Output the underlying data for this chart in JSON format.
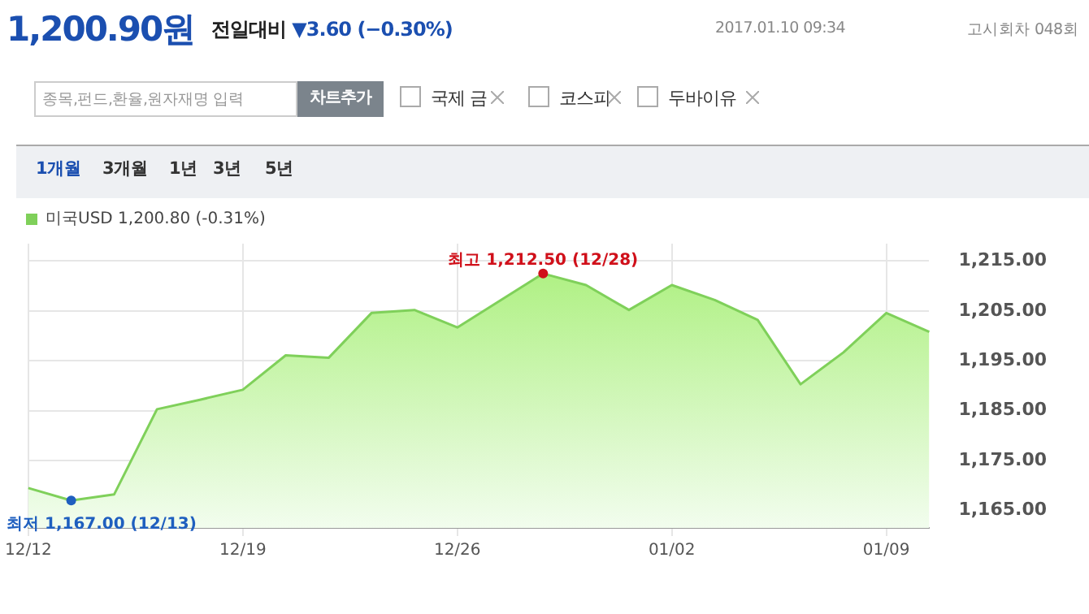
{
  "chart_data": {
    "type": "area",
    "title": "1,200.90원",
    "subtitle": "전일대비 ▼3.60 (−0.30%)",
    "categories": [
      "12/12",
      null,
      null,
      null,
      null,
      "12/19",
      null,
      null,
      null,
      null,
      "12/26",
      null,
      null,
      null,
      null,
      "01/02",
      null,
      null,
      null,
      null,
      "01/09",
      null
    ],
    "series": [
      {
        "name": "미국USD 1,200.80 (-0.31%)",
        "color": "#7fd05a",
        "values": [
          1169.5,
          1167.0,
          1168.2,
          1185.3,
          1187.2,
          1189.2,
          1196.1,
          1195.6,
          1204.6,
          1205.2,
          1201.7,
          1207.1,
          1212.5,
          1210.2,
          1205.2,
          1210.2,
          1207.2,
          1203.2,
          1190.3,
          1196.7,
          1204.6,
          1200.8
        ]
      }
    ],
    "ylim": [
      1161.5,
      1218.5
    ],
    "yticks": [
      {
        "value": 1165,
        "label": "1,165.00"
      },
      {
        "value": 1175,
        "label": "1,175.00"
      },
      {
        "value": 1185,
        "label": "1,185.00"
      },
      {
        "value": 1195,
        "label": "1,195.00"
      },
      {
        "value": 1205,
        "label": "1,205.00"
      },
      {
        "value": 1215,
        "label": "1,215.00"
      }
    ],
    "grid": true,
    "legend": "top left",
    "marker": "none",
    "annotations": [
      "2017.01.10 09:34",
      "고시회차 048회",
      "종목,펀드,환율,원자재명 입력",
      "차트추가",
      "국제 금",
      "코스피",
      "두바이유",
      "1개월",
      "3개월",
      "1년",
      "3년",
      "5년",
      {
        "text": "최고 1,212.50 (12/28)",
        "y": 1212.5
      },
      {
        "text": "최저 1,167.00 (12/13)",
        "y": 1167.0
      }
    ]
  }
}
